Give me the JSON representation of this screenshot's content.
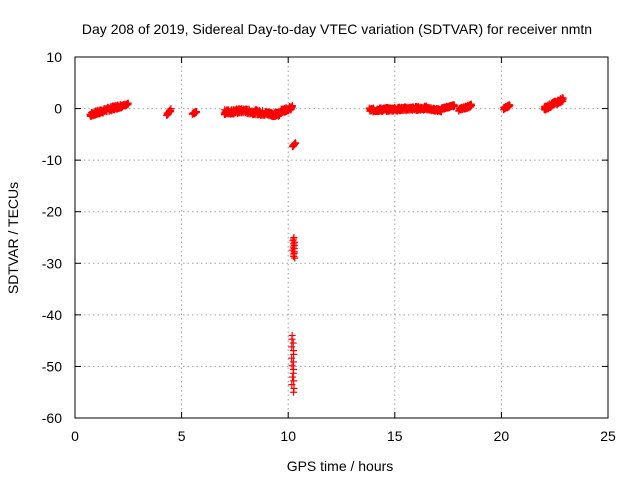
{
  "chart_data": {
    "type": "scatter",
    "title": "Day 208 of 2019, Sidereal Day-to-day VTEC variation (SDTVAR) for receiver nmtn",
    "xlabel": "GPS time / hours",
    "ylabel": "SDTVAR / TECUs",
    "xlim": [
      0,
      25
    ],
    "ylim": [
      -60,
      10
    ],
    "xticks": [
      0,
      5,
      10,
      15,
      20,
      25
    ],
    "yticks": [
      10,
      0,
      -10,
      -20,
      -30,
      -40,
      -50,
      -60
    ],
    "grid": true,
    "marker": "plus",
    "color": "#ff0000",
    "segments": [
      {
        "x": [
          0.7,
          2.2
        ],
        "y": [
          -1.2,
          0.6
        ],
        "spread": 0.9
      },
      {
        "x": [
          2.2,
          2.5
        ],
        "y": [
          0.5,
          0.9
        ],
        "spread": 0.4
      },
      {
        "x": [
          4.3,
          4.5
        ],
        "y": [
          -1.4,
          -0.3
        ],
        "spread": 0.6
      },
      {
        "x": [
          5.5,
          5.7
        ],
        "y": [
          -1.1,
          -0.6
        ],
        "spread": 0.4
      },
      {
        "x": [
          7.0,
          8.0
        ],
        "y": [
          -0.7,
          -0.4
        ],
        "spread": 1.0
      },
      {
        "x": [
          8.0,
          9.6
        ],
        "y": [
          -0.5,
          -1.2
        ],
        "spread": 1.0
      },
      {
        "x": [
          9.6,
          10.2
        ],
        "y": [
          -0.6,
          0.2
        ],
        "spread": 0.8
      },
      {
        "x": [
          10.2,
          10.35
        ],
        "y": [
          -7.4,
          -6.6
        ],
        "spread": 0.2
      },
      {
        "x": [
          13.8,
          16.5
        ],
        "y": [
          -0.3,
          0.1
        ],
        "spread": 0.8
      },
      {
        "x": [
          16.5,
          17.2
        ],
        "y": [
          0.0,
          -0.4
        ],
        "spread": 0.6
      },
      {
        "x": [
          17.2,
          17.8
        ],
        "y": [
          0.0,
          0.6
        ],
        "spread": 0.4
      },
      {
        "x": [
          18.0,
          18.6
        ],
        "y": [
          -0.2,
          0.6
        ],
        "spread": 0.6
      },
      {
        "x": [
          20.1,
          20.4
        ],
        "y": [
          0.0,
          0.6
        ],
        "spread": 0.5
      },
      {
        "x": [
          22.0,
          22.9
        ],
        "y": [
          0.0,
          1.8
        ],
        "spread": 0.9
      }
    ],
    "columns": [
      {
        "x": 10.25,
        "y": [
          -29.0,
          -25.0
        ],
        "n": 14
      },
      {
        "x": 10.22,
        "y": [
          -55.0,
          -44.0
        ],
        "n": 16
      }
    ]
  }
}
